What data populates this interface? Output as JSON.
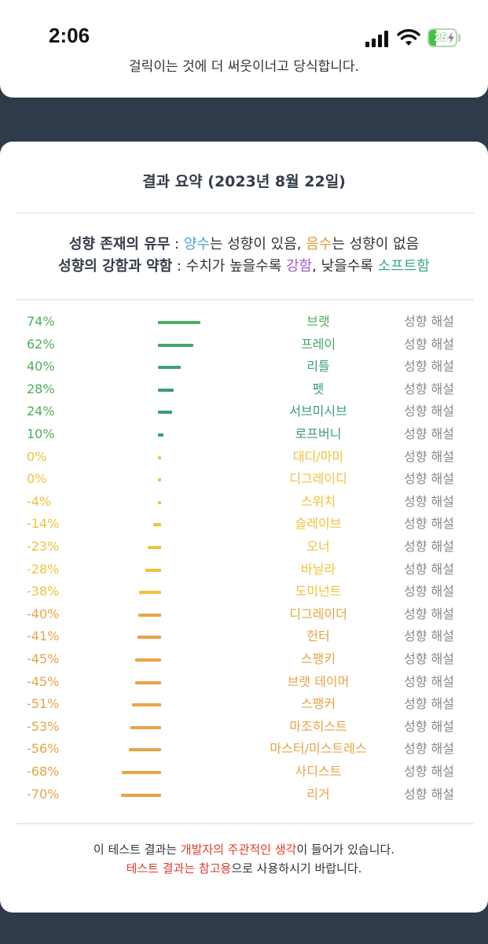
{
  "status_bar": {
    "time": "2:06",
    "battery": "25"
  },
  "top_card": {
    "partial_text": "걸릭이는 것에 더 써웃이너고 당식합니다."
  },
  "result": {
    "title": "결과 요약 (2023년 8월 22일)",
    "legend": {
      "line1": {
        "label": "성향 존재의 유무",
        "sep": " : ",
        "positive": "양수",
        "mid": "는 성향이 있음, ",
        "negative": "음수",
        "end": "는 성향이 없음"
      },
      "line2": {
        "label": "성향의 강함과 약함",
        "sep": " : 수치가 높을수록 ",
        "strong": "강함",
        "mid": ", 낮을수록 ",
        "soft": "소프트함"
      }
    },
    "colors": {
      "green": "#4cae5c",
      "teal": "#3a9a86",
      "yellow": "#f0c23a",
      "orange": "#e8a444",
      "link": "#888888"
    },
    "items": [
      {
        "percent": "74%",
        "value": 74,
        "name": "브랫",
        "link": "성향 해설",
        "color": "#4cae5c"
      },
      {
        "percent": "62%",
        "value": 62,
        "name": "프레이",
        "link": "성향 해설",
        "color": "#44a868"
      },
      {
        "percent": "40%",
        "value": 40,
        "name": "리틀",
        "link": "성향 해설",
        "color": "#3d9f7c"
      },
      {
        "percent": "28%",
        "value": 28,
        "name": "펫",
        "link": "성향 해설",
        "color": "#3a9a86"
      },
      {
        "percent": "24%",
        "value": 24,
        "name": "서브미시브",
        "link": "성향 해설",
        "color": "#3a9a86"
      },
      {
        "percent": "10%",
        "value": 10,
        "name": "로프버니",
        "link": "성향 해설",
        "color": "#3a9a86"
      },
      {
        "percent": "0%",
        "value": 0,
        "name": "대디/마미",
        "link": "성향 해설",
        "color": "#f0c23a"
      },
      {
        "percent": "0%",
        "value": 0,
        "name": "디그레이디",
        "link": "성향 해설",
        "color": "#f0c23a"
      },
      {
        "percent": "-4%",
        "value": -4,
        "name": "스위치",
        "link": "성향 해설",
        "color": "#f0c23a"
      },
      {
        "percent": "-14%",
        "value": -14,
        "name": "슬레이브",
        "link": "성향 해설",
        "color": "#f0c23a"
      },
      {
        "percent": "-23%",
        "value": -23,
        "name": "오너",
        "link": "성향 해설",
        "color": "#f0c23a"
      },
      {
        "percent": "-28%",
        "value": -28,
        "name": "바닐라",
        "link": "성향 해설",
        "color": "#f0c23a"
      },
      {
        "percent": "-38%",
        "value": -38,
        "name": "도미넌트",
        "link": "성향 해설",
        "color": "#f0c23a"
      },
      {
        "percent": "-40%",
        "value": -40,
        "name": "디그레이더",
        "link": "성향 해설",
        "color": "#e8a444"
      },
      {
        "percent": "-41%",
        "value": -41,
        "name": "헌터",
        "link": "성향 해설",
        "color": "#e8a444"
      },
      {
        "percent": "-45%",
        "value": -45,
        "name": "스팽키",
        "link": "성향 해설",
        "color": "#e8a444"
      },
      {
        "percent": "-45%",
        "value": -45,
        "name": "브랫 테이머",
        "link": "성향 해설",
        "color": "#e8a444"
      },
      {
        "percent": "-51%",
        "value": -51,
        "name": "스팽커",
        "link": "성향 해설",
        "color": "#e8a444"
      },
      {
        "percent": "-53%",
        "value": -53,
        "name": "마조히스트",
        "link": "성향 해설",
        "color": "#e8a444"
      },
      {
        "percent": "-56%",
        "value": -56,
        "name": "마스터/미스트레스",
        "link": "성향 해설",
        "color": "#e8a444"
      },
      {
        "percent": "-68%",
        "value": -68,
        "name": "사디스트",
        "link": "성향 해설",
        "color": "#e8a444"
      },
      {
        "percent": "-70%",
        "value": -70,
        "name": "리거",
        "link": "성향 해설",
        "color": "#e8a444"
      }
    ],
    "footer": {
      "line1_a": "이 테스트 결과는 ",
      "line1_b": "개발자의 주관적인 생각",
      "line1_c": "이 들어가 있습니다.",
      "line2_a": "테스트 결과는 참고용",
      "line2_b": "으로 사용하시기 바랍니다."
    }
  }
}
